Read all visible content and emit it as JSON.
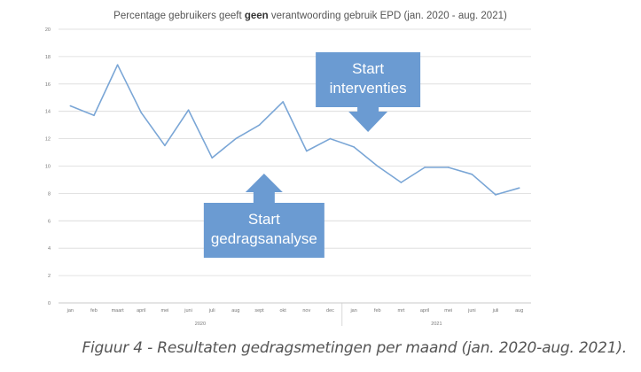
{
  "chart_data": {
    "type": "line",
    "title_parts": [
      "Percentage gebruikers geeft ",
      "geen",
      " verantwoording gebruik EPD (jan. 2020 - aug. 2021)"
    ],
    "categories": [
      "jan",
      "feb",
      "maart",
      "april",
      "mei",
      "juni",
      "juli",
      "aug",
      "sept",
      "okt",
      "nov",
      "dec",
      "jan",
      "feb",
      "mrt",
      "april",
      "mei",
      "juni",
      "juli",
      "aug"
    ],
    "values": [
      14.4,
      13.7,
      17.4,
      13.9,
      11.5,
      14.1,
      10.6,
      12.0,
      13.0,
      14.7,
      11.1,
      12.0,
      11.4,
      10.0,
      8.8,
      9.9,
      9.9,
      9.4,
      7.9,
      8.4
    ],
    "year_labels": [
      {
        "label": "2020",
        "from": 0,
        "to": 11
      },
      {
        "label": "2021",
        "from": 12,
        "to": 19
      }
    ],
    "ylim": [
      0,
      20
    ],
    "yticks": [
      0,
      2,
      4,
      6,
      8,
      10,
      12,
      14,
      16,
      18,
      20
    ],
    "grid": true,
    "line_color": "#7aa6d6",
    "grid_color": "#d9d9d9",
    "annotations": [
      {
        "id": "start-gedragsanalyse",
        "lines": [
          "Start",
          "gedragsanalyse"
        ],
        "arrow": "up",
        "at_index": 8.2,
        "fill": "#6b9bd2"
      },
      {
        "id": "start-interventies",
        "lines": [
          "Start",
          "interventies"
        ],
        "arrow": "down",
        "at_index": 12.6,
        "fill": "#6b9bd2"
      }
    ]
  },
  "caption": "Figuur 4 - Resultaten gedragsmetingen per maand (jan. 2020-aug. 2021)."
}
